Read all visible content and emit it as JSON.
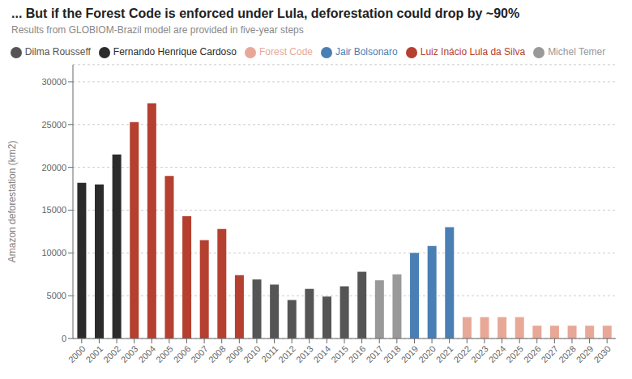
{
  "chart_data": {
    "type": "bar",
    "title": "... But if the Forest Code is enforced under Lula, deforestation could drop by ~90%",
    "subtitle": "Results from GLOBIOM-Brazil model are provided in five-year steps",
    "ylabel": "Amazon deforestation (km2)",
    "categories": [
      2000,
      2001,
      2002,
      2003,
      2004,
      2005,
      2006,
      2007,
      2008,
      2009,
      2010,
      2011,
      2012,
      2013,
      2014,
      2015,
      2016,
      2017,
      2018,
      2019,
      2020,
      2021,
      2022,
      2023,
      2024,
      2025,
      2026,
      2027,
      2028,
      2029,
      2030
    ],
    "series": [
      {
        "name": "Fernando Henrique Cardoso",
        "color": "#2b2b2b",
        "values": [
          18200,
          18000,
          21500,
          null,
          null,
          null,
          null,
          null,
          null,
          null,
          null,
          null,
          null,
          null,
          null,
          null,
          null,
          null,
          null,
          null,
          null,
          null,
          null,
          null,
          null,
          null,
          null,
          null,
          null,
          null,
          null
        ]
      },
      {
        "name": "Luiz Inácio Lula da Silva",
        "color": "#b54030",
        "values": [
          null,
          null,
          null,
          25300,
          27500,
          19000,
          14300,
          11500,
          12800,
          7400,
          null,
          null,
          null,
          null,
          null,
          null,
          null,
          null,
          null,
          null,
          null,
          null,
          null,
          null,
          null,
          null,
          null,
          null,
          null,
          null,
          null
        ]
      },
      {
        "name": "Dilma Rousseff",
        "color": "#555555",
        "values": [
          null,
          null,
          null,
          null,
          null,
          null,
          null,
          null,
          null,
          null,
          6900,
          6300,
          4500,
          5800,
          4900,
          6100,
          7800,
          null,
          null,
          null,
          null,
          null,
          null,
          null,
          null,
          null,
          null,
          null,
          null,
          null,
          null
        ]
      },
      {
        "name": "Michel Temer",
        "color": "#999999",
        "values": [
          null,
          null,
          null,
          null,
          null,
          null,
          null,
          null,
          null,
          null,
          null,
          null,
          null,
          null,
          null,
          null,
          null,
          6800,
          7500,
          null,
          null,
          null,
          null,
          null,
          null,
          null,
          null,
          null,
          null,
          null,
          null
        ]
      },
      {
        "name": "Jair Bolsonaro",
        "color": "#4a7fb5",
        "values": [
          null,
          null,
          null,
          null,
          null,
          null,
          null,
          null,
          null,
          null,
          null,
          null,
          null,
          null,
          null,
          null,
          null,
          null,
          null,
          10000,
          10800,
          13000,
          null,
          null,
          null,
          null,
          null,
          null,
          null,
          null,
          null
        ]
      },
      {
        "name": "Forest Code",
        "color": "#e8a898",
        "values": [
          null,
          null,
          null,
          null,
          null,
          null,
          null,
          null,
          null,
          null,
          null,
          null,
          null,
          null,
          null,
          null,
          null,
          null,
          null,
          null,
          null,
          null,
          2500,
          2500,
          2500,
          2500,
          1500,
          1500,
          1500,
          1500,
          1500
        ]
      }
    ],
    "stacked": true,
    "ylim": [
      0,
      32000
    ],
    "yticks": [
      0,
      5000,
      10000,
      15000,
      20000,
      25000,
      30000
    ],
    "grid": true
  }
}
